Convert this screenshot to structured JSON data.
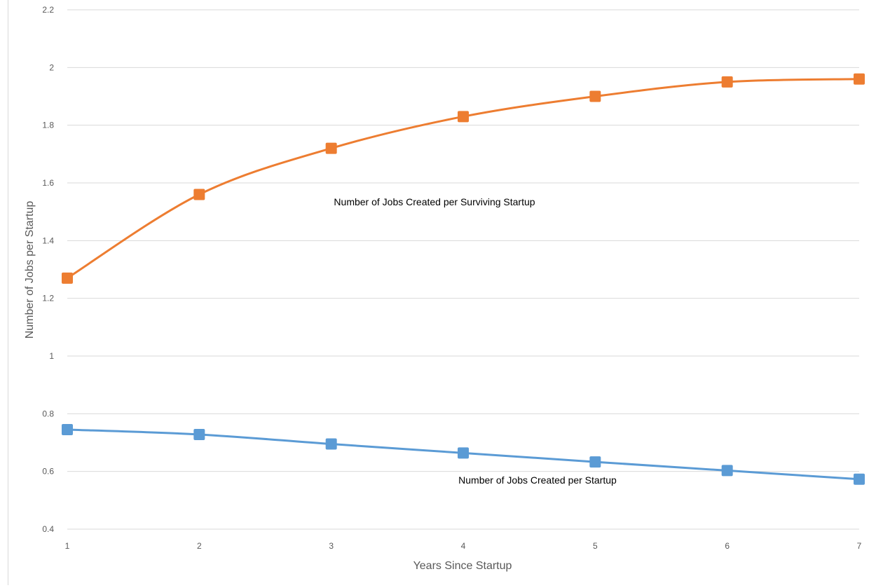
{
  "chart_data": {
    "type": "line",
    "title": "",
    "xlabel": "Years Since Startup",
    "ylabel": "Number of Jobs per Startup",
    "x": [
      1,
      2,
      3,
      4,
      5,
      6,
      7
    ],
    "xlim": [
      1,
      7
    ],
    "ylim": [
      0.4,
      2.2
    ],
    "x_ticks": [
      "1",
      "2",
      "3",
      "4",
      "5",
      "6",
      "7"
    ],
    "y_ticks": [
      "0.4",
      "0.6",
      "0.8",
      "1",
      "1.2",
      "1.4",
      "1.6",
      "1.8",
      "2",
      "2.2"
    ],
    "y_tick_values": [
      0.4,
      0.6,
      0.8,
      1.0,
      1.2,
      1.4,
      1.6,
      1.8,
      2.0,
      2.2
    ],
    "grid": true,
    "legend": "none",
    "series": [
      {
        "label": "Number of Jobs Created per Surviving Startup",
        "color": "#ed7d31",
        "marker": "square",
        "values": [
          1.27,
          1.56,
          1.72,
          1.83,
          1.9,
          1.95,
          1.96
        ]
      },
      {
        "label": "Number of Jobs Created per Startup",
        "color": "#5b9bd5",
        "marker": "square",
        "values": [
          0.745,
          0.728,
          0.695,
          0.664,
          0.633,
          0.603,
          0.573
        ]
      }
    ]
  }
}
